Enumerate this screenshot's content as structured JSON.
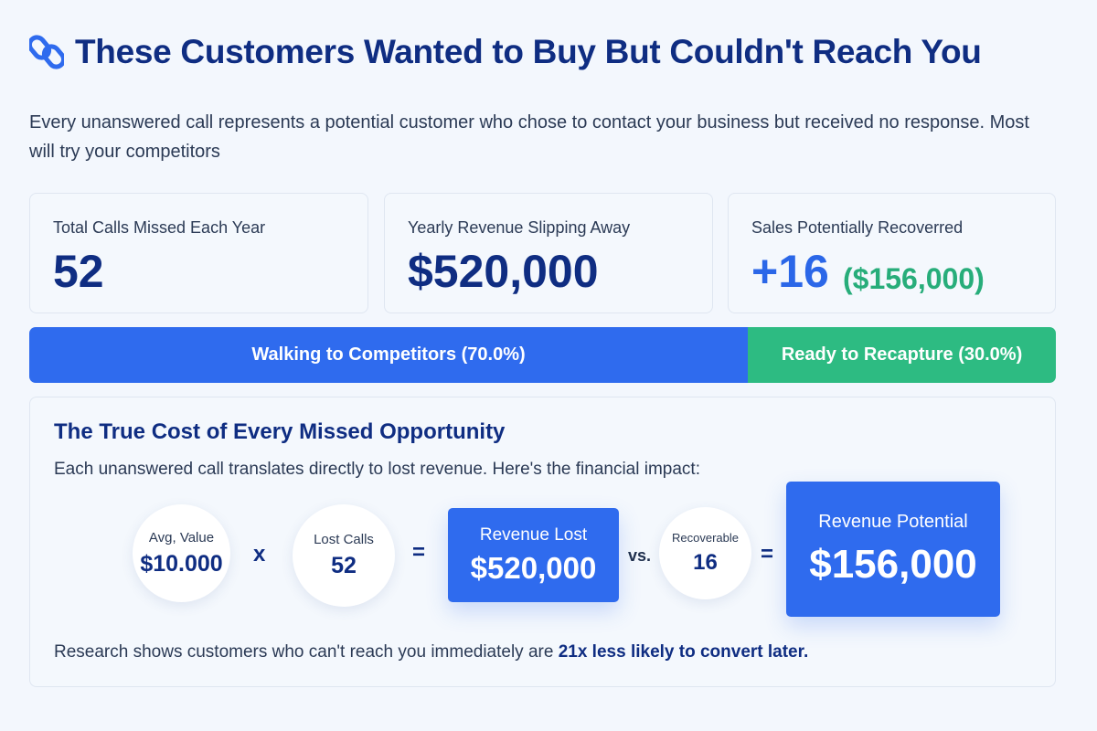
{
  "header": {
    "icon": "link-icon",
    "title": "These Customers Wanted to Buy But Couldn't Reach You"
  },
  "intro": "Every unanswered call represents a potential customer who chose to contact your business but received no response. Most will try your competitors",
  "stats": [
    {
      "label": "Total Calls Missed Each Year",
      "value": "52"
    },
    {
      "label": "Yearly Revenue Slipping Away",
      "value": "$520,000"
    },
    {
      "label": "Sales Potentially Recoverred",
      "value": "+16",
      "sub_value": "($156,000)"
    }
  ],
  "split_bar": {
    "segments": [
      {
        "label": "Walking to Competitors (70.0%)",
        "percent": 70.0,
        "color": "#2f6bee"
      },
      {
        "label": "Ready to Recapture (30.0%)",
        "percent": 30.0,
        "color": "#2dbb82"
      }
    ]
  },
  "cost_panel": {
    "title": "The True Cost of Every Missed Opportunity",
    "description": "Each unanswered call translates directly to lost revenue. Here's the financial impact:",
    "avg_value": {
      "label": "Avg, Value",
      "value": "$10.000"
    },
    "multiply_symbol": "x",
    "lost_calls": {
      "label": "Lost Calls",
      "value": "52"
    },
    "equals_symbol": "=",
    "revenue_lost": {
      "label": "Revenue Lost",
      "value": "$520,000"
    },
    "vs_text": "vs.",
    "recoverable": {
      "label": "Recoverable",
      "value": "16"
    },
    "revenue_potential": {
      "label": "Revenue Potential",
      "value": "$156,000"
    },
    "research_prefix": "Research shows customers who can't reach you immediately are ",
    "research_highlight": "21x less likely to convert later."
  },
  "colors": {
    "primary_blue": "#2f6bee",
    "navy": "#0f2d82",
    "green": "#2dbb82",
    "background": "#f3f7fd"
  }
}
